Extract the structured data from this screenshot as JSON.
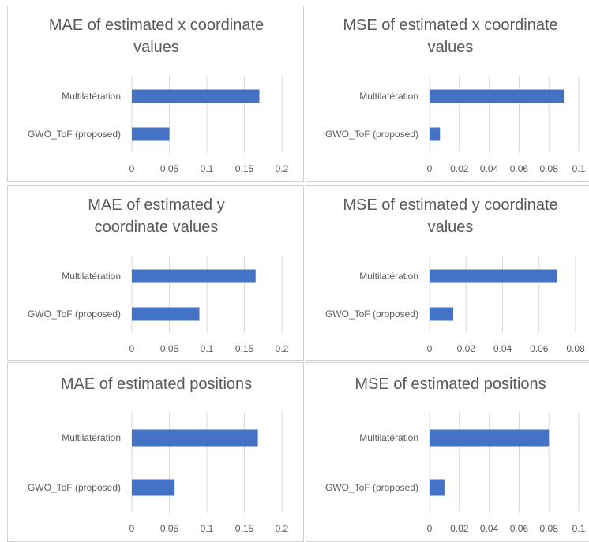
{
  "chart_data": [
    {
      "type": "bar",
      "orientation": "horizontal",
      "title_lines": [
        "MAE of estimated x coordinate",
        "values"
      ],
      "categories": [
        "Multilatération",
        "GWO_ToF (proposed)"
      ],
      "values": [
        0.17,
        0.05
      ],
      "ticks": [
        "0",
        "0.05",
        "0.1",
        "0.15",
        "0.2"
      ],
      "xlim": [
        0,
        0.2
      ],
      "grid": true,
      "bar_color": "#4472C4"
    },
    {
      "type": "bar",
      "orientation": "horizontal",
      "title_lines": [
        "MSE of estimated x coordinate",
        "values"
      ],
      "categories": [
        "Multilatération",
        "GWO_ToF (proposed)"
      ],
      "values": [
        0.09,
        0.007
      ],
      "ticks": [
        "0",
        "0.02",
        "0.04",
        "0.06",
        "0.08",
        "0.1"
      ],
      "xlim": [
        0,
        0.1
      ],
      "grid": true,
      "bar_color": "#4472C4"
    },
    {
      "type": "bar",
      "orientation": "horizontal",
      "title_lines": [
        "MAE of estimated y",
        "coordinate values"
      ],
      "categories": [
        "Multilatération",
        "GWO_ToF (proposed)"
      ],
      "values": [
        0.165,
        0.09
      ],
      "ticks": [
        "0",
        "0.05",
        "0.1",
        "0.15",
        "0.2"
      ],
      "xlim": [
        0,
        0.2
      ],
      "grid": true,
      "bar_color": "#4472C4"
    },
    {
      "type": "bar",
      "orientation": "horizontal",
      "title_lines": [
        "MSE of estimated y coordinate",
        "values"
      ],
      "categories": [
        "Multilatération",
        "GWO_ToF (proposed)"
      ],
      "values": [
        0.07,
        0.013
      ],
      "ticks": [
        "0",
        "0.02",
        "0.04",
        "0.06",
        "0.08"
      ],
      "xlim": [
        0,
        0.08
      ],
      "grid": true,
      "bar_color": "#4472C4"
    },
    {
      "type": "bar",
      "orientation": "horizontal",
      "title_lines": [
        "MAE of estimated positions"
      ],
      "categories": [
        "Multilatération",
        "GWO_ToF (proposed)"
      ],
      "values": [
        0.168,
        0.057
      ],
      "ticks": [
        "0",
        "0.05",
        "0.1",
        "0.15",
        "0.2"
      ],
      "xlim": [
        0,
        0.2
      ],
      "grid": true,
      "bar_color": "#4472C4"
    },
    {
      "type": "bar",
      "orientation": "horizontal",
      "title_lines": [
        "MSE of estimated positions"
      ],
      "categories": [
        "Multilatération",
        "GWO_ToF (proposed)"
      ],
      "values": [
        0.08,
        0.01
      ],
      "ticks": [
        "0",
        "0.02",
        "0.04",
        "0.06",
        "0.08",
        "0.1"
      ],
      "xlim": [
        0,
        0.1
      ],
      "grid": true,
      "bar_color": "#4472C4"
    }
  ]
}
